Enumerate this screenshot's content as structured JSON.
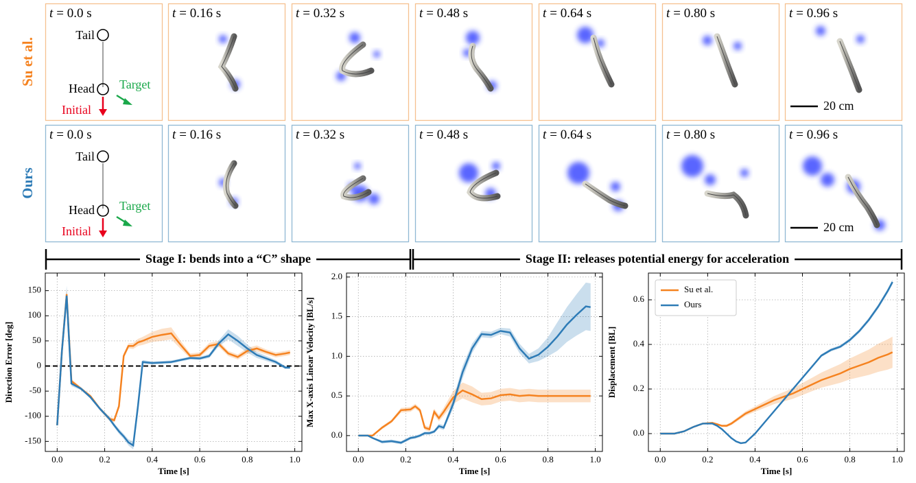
{
  "rows": [
    "Su et al.",
    "Ours"
  ],
  "time_var": "t",
  "time_labels": [
    "= 0.0 s",
    "= 0.16 s",
    "= 0.32 s",
    "= 0.48 s",
    "= 0.64 s",
    "= 0.80 s",
    "= 0.96 s"
  ],
  "annotations": {
    "tail": "Tail",
    "head": "Head",
    "target": "Target",
    "initial": "Initial"
  },
  "scale_bar": "20 cm",
  "stages": [
    "Stage I: bends into a “C” shape",
    "Stage II: releases potential energy for acceleration"
  ],
  "chart_data": [
    {
      "type": "line",
      "xlabel": "Time [s]",
      "ylabel": "Direction Error [deg]",
      "x": [
        0,
        0.02,
        0.04,
        0.06,
        0.1,
        0.14,
        0.18,
        0.22,
        0.24,
        0.26,
        0.28,
        0.3,
        0.32,
        0.34,
        0.36,
        0.4,
        0.44,
        0.48,
        0.52,
        0.56,
        0.6,
        0.64,
        0.68,
        0.72,
        0.76,
        0.8,
        0.84,
        0.88,
        0.92,
        0.96,
        0.98
      ],
      "series": [
        {
          "color": "#f5821f",
          "values": [
            -118,
            30,
            143,
            -30,
            -45,
            -60,
            -85,
            -105,
            -108,
            -80,
            20,
            40,
            40,
            47,
            50,
            58,
            62,
            65,
            42,
            20,
            22,
            40,
            44,
            25,
            18,
            30,
            35,
            28,
            22,
            25,
            27
          ],
          "errors": [
            2,
            8,
            10,
            4,
            3,
            3,
            3,
            4,
            4,
            5,
            5,
            5,
            6,
            7,
            8,
            10,
            12,
            12,
            8,
            5,
            5,
            6,
            6,
            5,
            5,
            6,
            6,
            5,
            5,
            5,
            5
          ]
        },
        {
          "color": "#2d7bb6",
          "values": [
            -118,
            30,
            140,
            -35,
            -45,
            -62,
            -85,
            -105,
            -118,
            -130,
            -140,
            -152,
            -158,
            -80,
            8,
            6,
            7,
            8,
            12,
            16,
            15,
            20,
            45,
            63,
            50,
            35,
            22,
            15,
            8,
            -3,
            -3
          ],
          "errors": [
            2,
            10,
            20,
            5,
            3,
            3,
            3,
            4,
            4,
            5,
            5,
            6,
            8,
            15,
            4,
            3,
            3,
            3,
            3,
            3,
            3,
            4,
            6,
            10,
            10,
            8,
            6,
            5,
            4,
            3,
            3
          ]
        }
      ],
      "xlim": [
        -0.05,
        1.03
      ],
      "ylim": [
        -170,
        185
      ],
      "xticks": [
        {
          "value": 0,
          "label": "0.0"
        },
        0.2,
        0.4,
        0.6,
        0.8,
        {
          "value": 1,
          "label": "1.0"
        }
      ],
      "yticks": [
        -150,
        -100,
        -50,
        0,
        50,
        100,
        150
      ],
      "grid": true,
      "hline": 0,
      "legend": false
    },
    {
      "type": "line",
      "xlabel": "Time [s]",
      "ylabel": "Max X-axis Linear Velocity [BL/s]",
      "x": [
        0,
        0.02,
        0.04,
        0.06,
        0.1,
        0.14,
        0.18,
        0.22,
        0.24,
        0.26,
        0.28,
        0.3,
        0.32,
        0.34,
        0.36,
        0.4,
        0.44,
        0.48,
        0.52,
        0.56,
        0.6,
        0.64,
        0.68,
        0.72,
        0.76,
        0.8,
        0.84,
        0.88,
        0.92,
        0.96,
        0.98
      ],
      "series": [
        {
          "color": "#f5821f",
          "values": [
            0,
            0,
            0,
            0,
            0.1,
            0.18,
            0.32,
            0.33,
            0.37,
            0.32,
            0.1,
            0.08,
            0.3,
            0.22,
            0.3,
            0.48,
            0.57,
            0.52,
            0.46,
            0.47,
            0.51,
            0.52,
            0.5,
            0.51,
            0.5,
            0.5,
            0.5,
            0.5,
            0.5,
            0.5,
            0.5
          ],
          "errors": [
            0,
            0,
            0,
            0.01,
            0.02,
            0.02,
            0.03,
            0.03,
            0.03,
            0.03,
            0.03,
            0.03,
            0.04,
            0.04,
            0.05,
            0.08,
            0.1,
            0.1,
            0.08,
            0.08,
            0.08,
            0.08,
            0.08,
            0.08,
            0.08,
            0.08,
            0.08,
            0.08,
            0.08,
            0.08,
            0.08
          ]
        },
        {
          "color": "#2d7bb6",
          "values": [
            0,
            0,
            0,
            -0.03,
            -0.08,
            -0.07,
            -0.09,
            -0.03,
            -0.02,
            0,
            0.03,
            0.03,
            0.05,
            0.12,
            0.1,
            0.4,
            0.8,
            1.1,
            1.28,
            1.27,
            1.32,
            1.3,
            1.1,
            0.97,
            1.02,
            1.12,
            1.25,
            1.4,
            1.52,
            1.63,
            1.62
          ],
          "errors": [
            0,
            0,
            0,
            0.01,
            0.02,
            0.02,
            0.02,
            0.02,
            0.02,
            0.02,
            0.02,
            0.02,
            0.02,
            0.03,
            0.03,
            0.06,
            0.08,
            0.06,
            0.04,
            0.04,
            0.04,
            0.05,
            0.06,
            0.06,
            0.08,
            0.12,
            0.18,
            0.22,
            0.26,
            0.3,
            0.3
          ]
        }
      ],
      "xlim": [
        -0.05,
        1.03
      ],
      "ylim": [
        -0.2,
        2.05
      ],
      "xticks": [
        {
          "value": 0,
          "label": "0.0"
        },
        0.2,
        0.4,
        0.6,
        0.8,
        {
          "value": 1,
          "label": "1.0"
        }
      ],
      "yticks": [
        {
          "value": 0,
          "label": "0.0"
        },
        0.5,
        {
          "value": 1,
          "label": "1.0"
        },
        1.5,
        {
          "value": 2,
          "label": "2.0"
        }
      ],
      "grid": true,
      "legend": false
    },
    {
      "type": "line",
      "xlabel": "Time [s]",
      "ylabel": "Displacement [BL]",
      "x": [
        0,
        0.02,
        0.04,
        0.06,
        0.1,
        0.14,
        0.18,
        0.22,
        0.24,
        0.26,
        0.28,
        0.3,
        0.32,
        0.34,
        0.36,
        0.4,
        0.44,
        0.48,
        0.52,
        0.56,
        0.6,
        0.64,
        0.68,
        0.72,
        0.76,
        0.8,
        0.84,
        0.88,
        0.92,
        0.96,
        0.98
      ],
      "series": [
        {
          "name": "Su et al.",
          "color": "#f5821f",
          "values": [
            0,
            0,
            0,
            0,
            0.01,
            0.03,
            0.045,
            0.048,
            0.042,
            0.035,
            0.035,
            0.045,
            0.06,
            0.075,
            0.09,
            0.11,
            0.13,
            0.15,
            0.165,
            0.18,
            0.2,
            0.22,
            0.24,
            0.255,
            0.27,
            0.29,
            0.305,
            0.32,
            0.34,
            0.355,
            0.365
          ],
          "errors": [
            0,
            0,
            0,
            0,
            0,
            0.002,
            0.003,
            0.004,
            0.004,
            0.005,
            0.006,
            0.007,
            0.008,
            0.009,
            0.01,
            0.012,
            0.015,
            0.018,
            0.021,
            0.024,
            0.027,
            0.03,
            0.034,
            0.038,
            0.042,
            0.047,
            0.052,
            0.057,
            0.063,
            0.068,
            0.07
          ]
        },
        {
          "name": "Ours",
          "color": "#2d7bb6",
          "values": [
            0,
            0,
            0,
            0,
            0.01,
            0.03,
            0.045,
            0.045,
            0.035,
            0.02,
            0,
            -0.02,
            -0.035,
            -0.043,
            -0.04,
            0,
            0.05,
            0.1,
            0.15,
            0.2,
            0.25,
            0.3,
            0.35,
            0.375,
            0.39,
            0.42,
            0.46,
            0.51,
            0.57,
            0.64,
            0.68
          ],
          "errors": [
            0,
            0,
            0,
            0,
            0,
            0.002,
            0.003,
            0.003,
            0.003,
            0.003,
            0.003,
            0.003,
            0.003,
            0.003,
            0.003,
            0.004,
            0.004,
            0.005,
            0.005,
            0.005,
            0.006,
            0.006,
            0.006,
            0.007,
            0.007,
            0.008,
            0.008,
            0.009,
            0.01,
            0.01,
            0.01
          ]
        }
      ],
      "xlim": [
        -0.05,
        1.03
      ],
      "ylim": [
        -0.08,
        0.72
      ],
      "xticks": [
        {
          "value": 0,
          "label": "0.0"
        },
        0.2,
        0.4,
        0.6,
        0.8,
        {
          "value": 1,
          "label": "1.0"
        }
      ],
      "yticks": [
        {
          "value": 0,
          "label": "0.0"
        },
        0.2,
        0.4,
        0.6
      ],
      "grid": true,
      "legend": "upper left"
    }
  ]
}
